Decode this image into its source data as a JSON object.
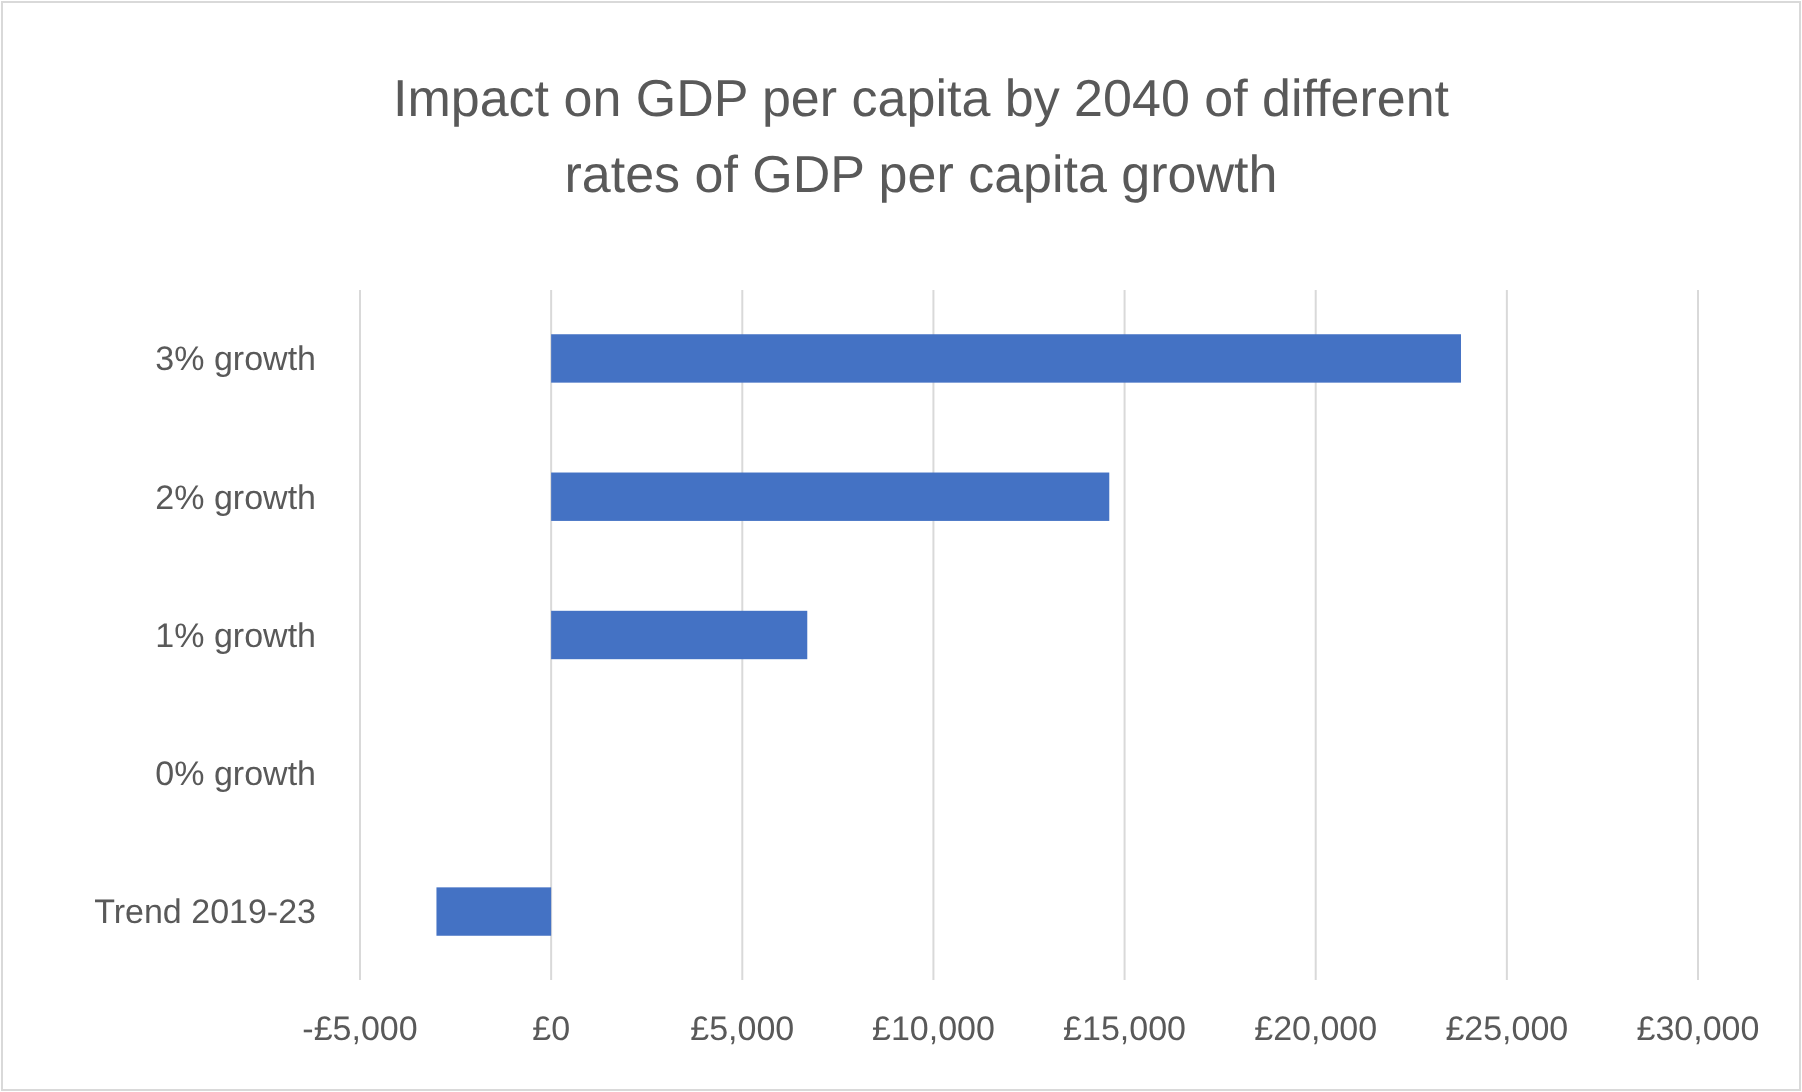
{
  "chart_data": {
    "type": "bar",
    "orientation": "horizontal",
    "title": "Impact on GDP per capita by 2040 of different rates of GDP per capita growth",
    "categories": [
      "3% growth",
      "2% growth",
      "1% growth",
      "0% growth",
      "Trend 2019-23"
    ],
    "values": [
      23800,
      14600,
      6700,
      0,
      -3000
    ],
    "color": "#4472c4",
    "xlim": [
      -5000,
      30000
    ],
    "xticks": [
      {
        "value": -5000,
        "label": "-£5,000"
      },
      {
        "value": 0,
        "label": "£0"
      },
      {
        "value": 5000,
        "label": "£5,000"
      },
      {
        "value": 10000,
        "label": "£10,000"
      },
      {
        "value": 15000,
        "label": "£15,000"
      },
      {
        "value": 20000,
        "label": "£20,000"
      },
      {
        "value": 25000,
        "label": "£25,000"
      },
      {
        "value": 30000,
        "label": "£30,000"
      }
    ],
    "grid": "x"
  }
}
